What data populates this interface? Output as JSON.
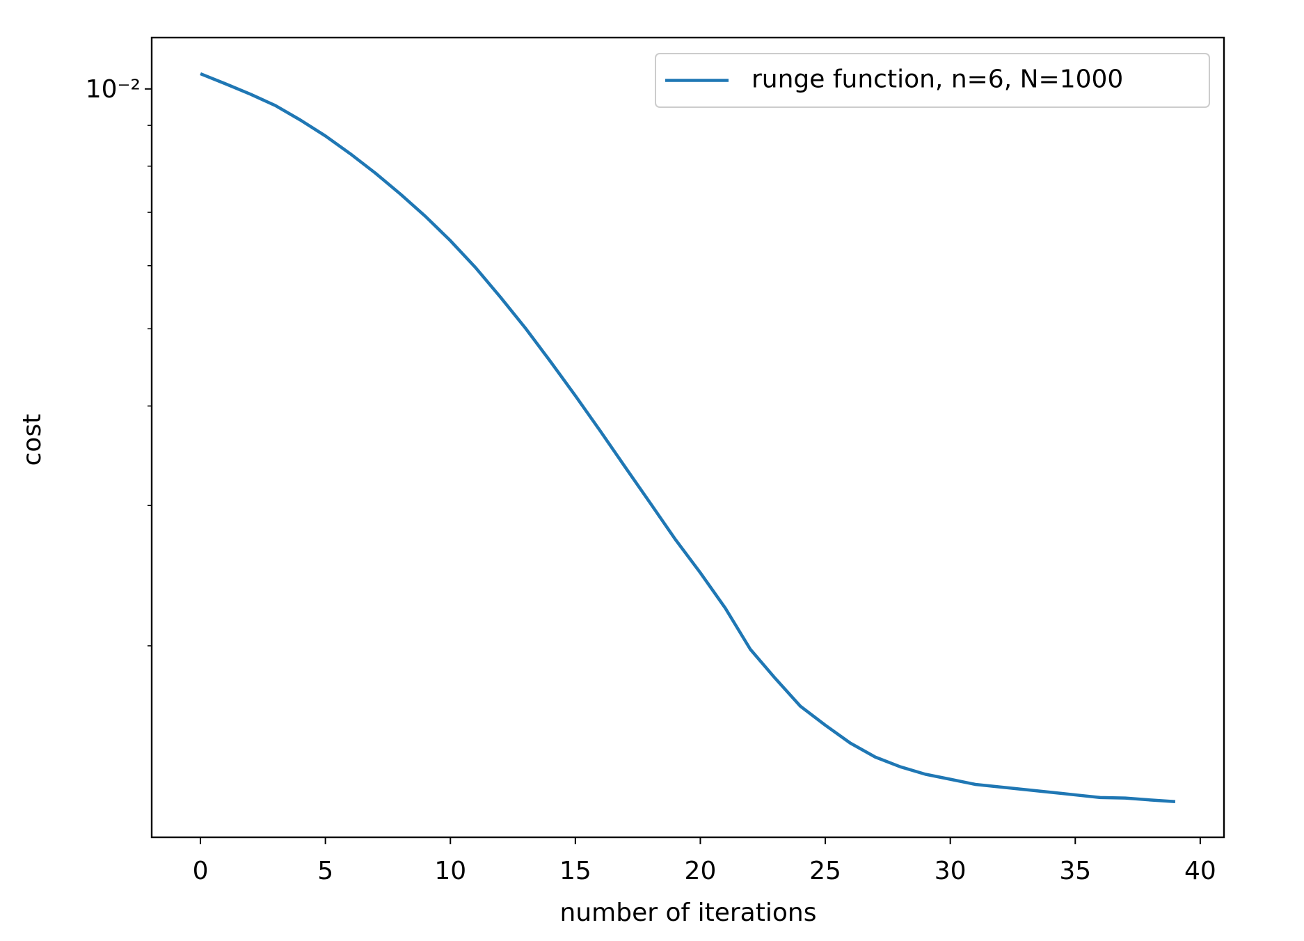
{
  "chart_data": {
    "type": "line",
    "xlabel": "number of iterations",
    "ylabel": "cost",
    "x": [
      0,
      1,
      2,
      3,
      4,
      5,
      6,
      7,
      8,
      9,
      10,
      11,
      12,
      13,
      14,
      15,
      16,
      17,
      18,
      19,
      20,
      21,
      22,
      23,
      24,
      25,
      26,
      27,
      28,
      29,
      30,
      31,
      32,
      33,
      34,
      35,
      36,
      37,
      38,
      39
    ],
    "series": [
      {
        "name": "runge function, n=6, N=1000",
        "color": "#1f77b4",
        "values": [
          0.01045,
          0.01015,
          0.00985,
          0.00953,
          0.00914,
          0.00873,
          0.00829,
          0.00784,
          0.00738,
          0.00692,
          0.00645,
          0.00597,
          0.00548,
          0.00501,
          0.00455,
          0.00412,
          0.00372,
          0.00335,
          0.00302,
          0.00272,
          0.00247,
          0.00223,
          0.00198,
          0.00182,
          0.00168,
          0.00159,
          0.00151,
          0.00145,
          0.00141,
          0.00138,
          0.00136,
          0.00134,
          0.00133,
          0.00132,
          0.00131,
          0.0013,
          0.00129,
          0.001288,
          0.001281,
          0.001275
        ]
      }
    ],
    "xlim": [
      -1.95,
      40.95
    ],
    "xticks": [
      0,
      5,
      10,
      15,
      20,
      25,
      30,
      35,
      40
    ],
    "ylim": [
      0.00115,
      0.0116
    ],
    "yscale": "log",
    "yticks": [
      {
        "value": 0.01,
        "label": "10⁻²"
      }
    ],
    "yminorticks": [
      0.002,
      0.003,
      0.004,
      0.005,
      0.006,
      0.007,
      0.008,
      0.009
    ],
    "legend": "upper right",
    "grid": false
  }
}
